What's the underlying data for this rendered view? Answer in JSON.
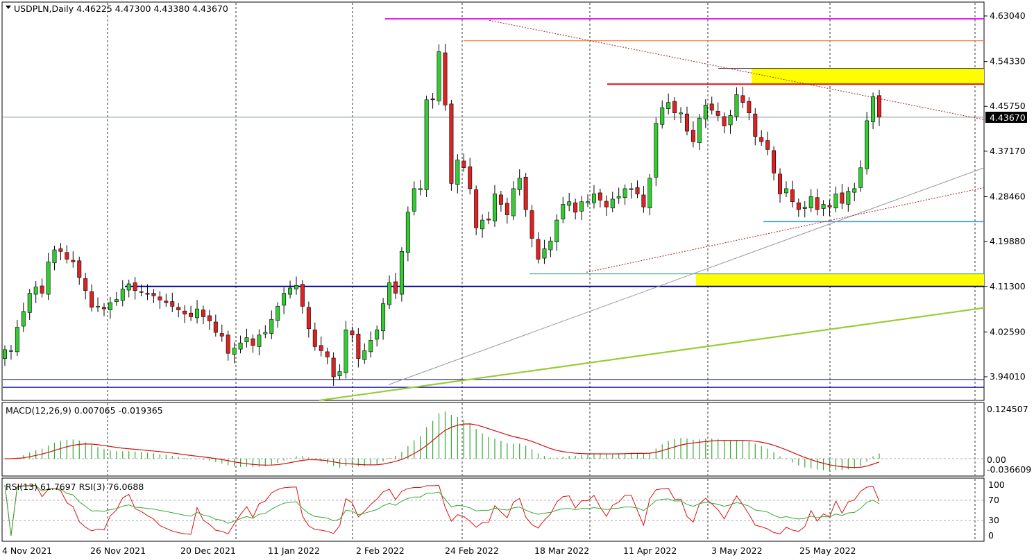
{
  "header": {
    "symbol_line": "USDPLN,Daily  4.46225 4.47300 4.43380 4.43670",
    "macd_label": "MACD(12,26,9) 0.007065 -0.019365",
    "rsi_label": "RSI(13) 61.7697  RSI(3) 76.0688"
  },
  "price_axis": {
    "ticks": [
      "4.63040",
      "4.54330",
      "4.45750",
      "4.37170",
      "4.28460",
      "4.19880",
      "4.11300",
      "4.02590",
      "3.94010"
    ],
    "current": "4.43670"
  },
  "macd_axis": {
    "ticks": [
      "0.124507",
      "0.00",
      "-0.036609"
    ]
  },
  "rsi_axis": {
    "ticks": [
      "100",
      "70",
      "30",
      "0"
    ]
  },
  "date_labels": [
    "4 Nov 2021",
    "26 Nov 2021",
    "20 Dec 2021",
    "11 Jan 2022",
    "2 Feb 2022",
    "24 Feb 2022",
    "18 Mar 2022",
    "11 Apr 2022",
    "3 May 2022",
    "25 May 2022"
  ],
  "colors": {
    "bull": "#33cc33",
    "bear": "#dd2222",
    "magenta": "#ee00ee",
    "orange": "#ff7733",
    "resistance": "#dd1111",
    "zone": "#ffff00",
    "support_blue": "#3399dd",
    "navy": "#000099",
    "trend_green": "#99cc33",
    "macd_hist": "#33aa33",
    "macd_signal": "#cc1111",
    "rsi13": "#33aa33",
    "rsi3": "#dd1111"
  },
  "chart_data": {
    "type": "candlestick",
    "symbol": "USDPLN",
    "timeframe": "Daily",
    "ohlc_last": {
      "open": 4.46225,
      "high": 4.473,
      "low": 4.4338,
      "close": 4.4367
    },
    "ylim": [
      3.905,
      4.657
    ],
    "candles_note": "approximate closes per bar",
    "closes": [
      3.992,
      3.99,
      4.035,
      4.065,
      4.1,
      4.112,
      4.1,
      4.16,
      4.183,
      4.18,
      4.165,
      4.16,
      4.13,
      4.105,
      4.073,
      4.075,
      4.07,
      4.082,
      4.088,
      4.108,
      4.118,
      4.105,
      4.102,
      4.098,
      4.095,
      4.087,
      4.082,
      4.075,
      4.068,
      4.06,
      4.055,
      4.07,
      4.055,
      4.047,
      4.025,
      4.018,
      3.985,
      3.995,
      4.005,
      4.015,
      4.0,
      4.02,
      4.025,
      4.05,
      4.075,
      4.1,
      4.11,
      4.115,
      4.075,
      4.032,
      3.998,
      3.99,
      3.978,
      3.94,
      3.95,
      4.03,
      4.02,
      3.975,
      3.99,
      4.01,
      4.03,
      4.08,
      4.12,
      4.1,
      4.18,
      4.255,
      4.3,
      4.3,
      4.47,
      4.47,
      4.562,
      4.46,
      4.31,
      4.355,
      4.34,
      4.3,
      4.225,
      4.24,
      4.24,
      4.29,
      4.27,
      4.25,
      4.3,
      4.32,
      4.26,
      4.205,
      4.165,
      4.185,
      4.2,
      4.24,
      4.27,
      4.275,
      4.255,
      4.275,
      4.275,
      4.29,
      4.278,
      4.265,
      4.28,
      4.285,
      4.3,
      4.3,
      4.29,
      4.265,
      4.32,
      4.425,
      4.455,
      4.465,
      4.445,
      4.445,
      4.41,
      4.39,
      4.435,
      4.46,
      4.45,
      4.44,
      4.42,
      4.44,
      4.48,
      4.465,
      4.445,
      4.4,
      4.39,
      4.375,
      4.33,
      4.29,
      4.3,
      4.275,
      4.26,
      4.265,
      4.285,
      4.26,
      4.27,
      4.265,
      4.29,
      4.272,
      4.295,
      4.3,
      4.34,
      4.43,
      4.476,
      4.437
    ],
    "levels": [
      {
        "name": "magenta",
        "value": 4.625
      },
      {
        "name": "orange",
        "value": 4.583
      },
      {
        "name": "resistance",
        "value": 4.5
      },
      {
        "name": "current_price",
        "value": 4.4367
      },
      {
        "name": "support_blue",
        "value": 4.237
      },
      {
        "name": "navy_support",
        "value": 4.113
      },
      {
        "name": "navy_low",
        "value": 3.92
      },
      {
        "name": "navy_low2",
        "value": 3.935
      }
    ],
    "zones": [
      {
        "from": 4.5,
        "to": 4.53
      },
      {
        "from": 4.113,
        "to": 4.137
      }
    ],
    "macd": {
      "main": 0.007065,
      "signal": -0.019365,
      "ylim": [
        -0.036609,
        0.124507
      ]
    },
    "rsi": {
      "rsi13": 61.7697,
      "rsi3": 76.0688,
      "levels": [
        30,
        70
      ],
      "ylim": [
        0,
        100
      ]
    },
    "x_labels": [
      "4 Nov 2021",
      "26 Nov 2021",
      "20 Dec 2021",
      "11 Jan 2022",
      "2 Feb 2022",
      "24 Feb 2022",
      "18 Mar 2022",
      "11 Apr 2022",
      "3 May 2022",
      "25 May 2022"
    ]
  }
}
